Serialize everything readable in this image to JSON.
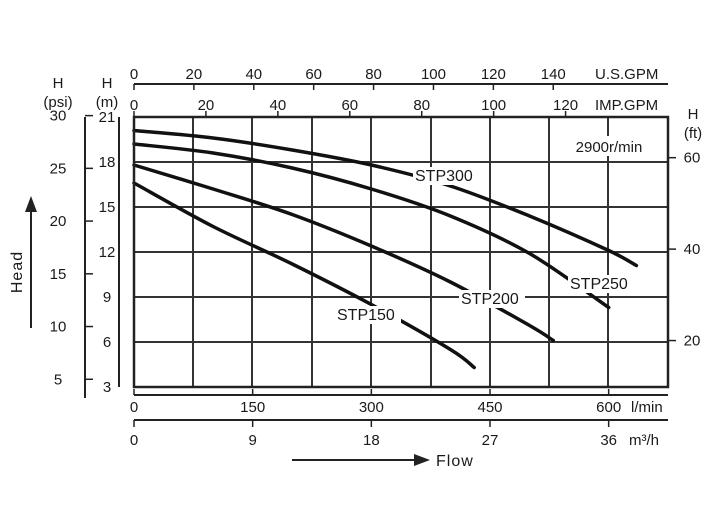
{
  "chart_data": {
    "type": "line",
    "x_unit_label": "l/min",
    "x_ticks": [
      "0",
      "150",
      "300",
      "450",
      "600"
    ],
    "x2_unit_label": "m³/h",
    "x2_ticks": [
      "0",
      "9",
      "18",
      "27",
      "36"
    ],
    "top_axis1_label": "U.S.GPM",
    "top_axis1_ticks": [
      "0",
      "20",
      "40",
      "60",
      "80",
      "100",
      "120",
      "140"
    ],
    "top_axis2_label": "IMP.GPM",
    "top_axis2_ticks": [
      "0",
      "20",
      "40",
      "60",
      "80",
      "100",
      "120"
    ],
    "y_psi_label": [
      "H",
      "(psi)"
    ],
    "y_psi_ticks": [
      "30",
      "25",
      "20",
      "15",
      "10",
      "5"
    ],
    "y_m_label": [
      "H",
      "(m)"
    ],
    "y_m_ticks": [
      "21",
      "18",
      "15",
      "12",
      "9",
      "6",
      "3"
    ],
    "y_ft_label": [
      "H",
      "(ft)"
    ],
    "y_ft_ticks": [
      "60",
      "40",
      "20"
    ],
    "xlim": [
      0,
      675
    ],
    "ylim": [
      3,
      21
    ],
    "speed_note": "2900r/min",
    "ylabel": "Head",
    "xlabel": "Flow",
    "grid": true,
    "series": [
      {
        "name": "STP150",
        "x": [
          0,
          100,
          200,
          300,
          400,
          430
        ],
        "y": [
          16.6,
          13.7,
          11.2,
          8.5,
          5.5,
          4.3
        ]
      },
      {
        "name": "STP200",
        "x": [
          0,
          100,
          200,
          300,
          400,
          500,
          530
        ],
        "y": [
          17.8,
          16.2,
          14.5,
          12.4,
          10.0,
          7.1,
          6.1
        ]
      },
      {
        "name": "STP250",
        "x": [
          0,
          100,
          200,
          300,
          400,
          500,
          600
        ],
        "y": [
          19.2,
          18.6,
          17.6,
          16.2,
          14.4,
          11.9,
          8.3
        ]
      },
      {
        "name": "STP300",
        "x": [
          0,
          100,
          200,
          300,
          400,
          500,
          600,
          635
        ],
        "y": [
          20.1,
          19.6,
          18.8,
          17.8,
          16.4,
          14.4,
          12.1,
          11.1
        ]
      }
    ]
  }
}
